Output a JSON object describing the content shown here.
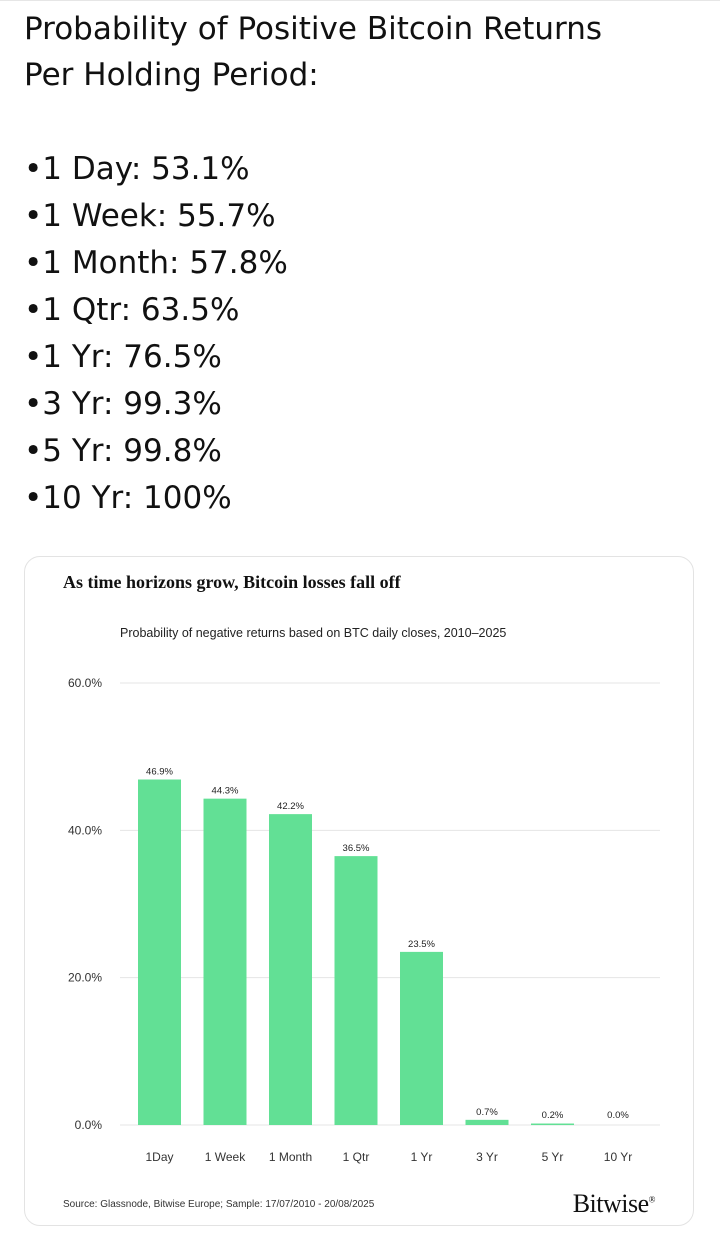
{
  "post": {
    "title": "Probability of Positive Bitcoin Returns\nPer Holding Period:",
    "bullets": [
      "•1 Day: 53.1%",
      "•1 Week: 55.7%",
      "•1 Month: 57.8%",
      "•1 Qtr: 63.5%",
      "•1 Yr: 76.5%",
      "•3 Yr: 99.3%",
      "•5 Yr: 99.8%",
      "•10 Yr: 100%"
    ]
  },
  "chart_data": {
    "type": "bar",
    "title": "As time horizons grow, Bitcoin losses fall off",
    "subtitle": "Probability of negative returns based on BTC daily closes, 2010–2025",
    "categories": [
      "1Day",
      "1 Week",
      "1 Month",
      "1 Qtr",
      "1 Yr",
      "3 Yr",
      "5 Yr",
      "10 Yr"
    ],
    "values": [
      46.9,
      44.3,
      42.2,
      36.5,
      23.5,
      0.7,
      0.2,
      0.0
    ],
    "value_labels": [
      "46.9%",
      "44.3%",
      "42.2%",
      "36.5%",
      "23.5%",
      "0.7%",
      "0.2%",
      "0.0%"
    ],
    "y_ticks": [
      0,
      20,
      40,
      60
    ],
    "y_tick_labels": [
      "0.0%",
      "20.0%",
      "40.0%",
      "60.0%"
    ],
    "ylim": [
      0,
      60
    ],
    "grid": true,
    "bar_color": "#62e095",
    "grid_color": "#e4e4e4",
    "source": "Source: Glassnode, Bitwise Europe; Sample: 17/07/2010 - 20/08/2025",
    "brand": "Bitwise"
  }
}
